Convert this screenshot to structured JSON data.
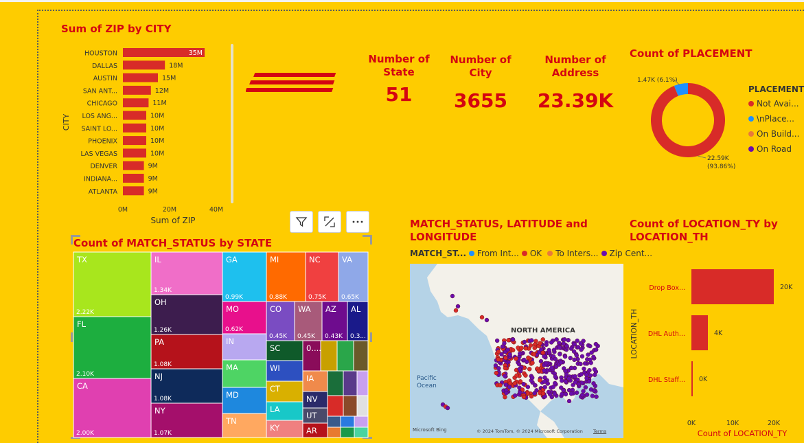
{
  "colors": {
    "background": "#FECC00",
    "dhl_red": "#D40511",
    "bar": "#D82B28",
    "donut_blue": "#1E90FF",
    "map_water": "#B5D3E7",
    "map_land": "#F3F1EA"
  },
  "charts": {
    "zip_by_city": {
      "title": "Sum of ZIP by CITY"
    },
    "kpis": [
      {
        "label": "Number of State",
        "value": "51"
      },
      {
        "label": "Number of City",
        "value": "3655"
      },
      {
        "label": "Number of Address",
        "value": "23.39K"
      }
    ],
    "placement": {
      "title": "Count of PLACEMENT",
      "legend_title": "PLACEMENT"
    },
    "match_status_state": {
      "title": "Count of MATCH_STATUS by STATE"
    },
    "map": {
      "title": "MATCH_STATUS, LATITUDE and LONGITUDE",
      "legend_title": "MATCH_ST...",
      "legend": [
        "From Int...",
        "OK",
        "To Inters...",
        "Zip Cent..."
      ],
      "label_na": "NORTH AMERICA",
      "label_pacific": "Pacific\nOcean",
      "logo": "Microsoft Bing",
      "copyright": "© 2024 TomTom, © 2024 Microsoft Corporation",
      "terms": "Terms"
    },
    "location": {
      "title": "Count of LOCATION_TY by LOCATION_TH"
    }
  },
  "visual_header": {
    "icons": [
      "filter-icon",
      "focus-mode-icon",
      "more-options-icon"
    ]
  },
  "logo_text": "DHL",
  "chart_data": [
    {
      "type": "bar",
      "orientation": "horizontal",
      "title": "Sum of ZIP by CITY",
      "xlabel": "Sum of ZIP",
      "ylabel": "CITY",
      "categories": [
        "HOUSTON",
        "DALLAS",
        "AUSTIN",
        "SAN ANT...",
        "CHICAGO",
        "LOS ANG...",
        "SAINT LO...",
        "PHOENIX",
        "LAS VEGAS",
        "DENVER",
        "INDIANA...",
        "ATLANTA"
      ],
      "values": [
        35000000,
        18000000,
        15000000,
        12000000,
        11000000,
        10000000,
        10000000,
        10000000,
        10000000,
        9000000,
        9000000,
        9000000
      ],
      "data_labels": [
        "35M",
        "18M",
        "15M",
        "12M",
        "11M",
        "10M",
        "10M",
        "10M",
        "10M",
        "9M",
        "9M",
        "9M"
      ],
      "xlim": [
        0,
        40000000
      ],
      "xticks": [
        "0M",
        "20M",
        "40M"
      ]
    },
    {
      "type": "pie",
      "donut": true,
      "title": "Count of PLACEMENT",
      "legend_title": "PLACEMENT",
      "legend": [
        "Not Avai...",
        "\\nPlace...",
        "On Build...",
        "On Road"
      ],
      "legend_colors": [
        "#D82B28",
        "#1E90FF",
        "#E8793B",
        "#6A0DAD"
      ],
      "slices": [
        {
          "label": "22.59K",
          "value": 22590,
          "percent": "(93.86%)",
          "color": "#D82B28"
        },
        {
          "label": "1.47K (6.1%)",
          "value": 1470,
          "color": "#1E90FF"
        },
        {
          "label": "",
          "value": 5,
          "color": "#E8793B"
        },
        {
          "label": "",
          "value": 5,
          "color": "#6A0DAD"
        }
      ]
    },
    {
      "type": "heatmap",
      "subtype": "treemap",
      "title": "Count of MATCH_STATUS by STATE",
      "tiles": [
        {
          "name": "TX",
          "value": "2.22K",
          "color": "#A8E61D"
        },
        {
          "name": "FL",
          "value": "2.10K",
          "color": "#1DAE3F"
        },
        {
          "name": "CA",
          "value": "2.00K",
          "color": "#E040B0"
        },
        {
          "name": "IL",
          "value": "1.34K",
          "color": "#F06EC8"
        },
        {
          "name": "OH",
          "value": "1.26K",
          "color": "#3D1D4E"
        },
        {
          "name": "PA",
          "value": "1.08K",
          "color": "#B5121B"
        },
        {
          "name": "NJ",
          "value": "1.08K",
          "color": "#0E2A5A"
        },
        {
          "name": "NY",
          "value": "1.07K",
          "color": "#A40F6B"
        },
        {
          "name": "GA",
          "value": "0.99K",
          "color": "#1EC0EE"
        },
        {
          "name": "MI",
          "value": "0.88K",
          "color": "#FF6A00"
        },
        {
          "name": "NC",
          "value": "0.75K",
          "color": "#F04040"
        },
        {
          "name": "VA",
          "value": "0.65K",
          "color": "#8FA8E8"
        },
        {
          "name": "MO",
          "value": "0.62K",
          "color": "#E8108C"
        },
        {
          "name": "CO",
          "value": "0.45K",
          "color": "#7A4CC2"
        },
        {
          "name": "WA",
          "value": "0.45K",
          "color": "#A85A7A"
        },
        {
          "name": "AZ",
          "value": "0.43K",
          "color": "#6E0C8E"
        },
        {
          "name": "AL",
          "value": "0.3...",
          "color": "#1A1A8A"
        },
        {
          "name": "IN",
          "value": "",
          "color": "#B8A8F0"
        },
        {
          "name": "SC",
          "value": "",
          "color": "#0F5A2A"
        },
        {
          "name": "MA",
          "value": "",
          "color": "#4ED464"
        },
        {
          "name": "WI",
          "value": "",
          "color": "#2D50C0"
        },
        {
          "name": "MD",
          "value": "",
          "color": "#1E88DE"
        },
        {
          "name": "CT",
          "value": "",
          "color": "#D9B000"
        },
        {
          "name": "TN",
          "value": "",
          "color": "#FFA860"
        },
        {
          "name": "LA",
          "value": "",
          "color": "#18C8C8"
        },
        {
          "name": "KY",
          "value": "",
          "color": "#F08080"
        },
        {
          "name": "IA",
          "value": "",
          "color": "#F08A4B"
        },
        {
          "name": "NV",
          "value": "",
          "color": "#2A2A6A"
        },
        {
          "name": "UT",
          "value": "",
          "color": "#4A4A6A"
        },
        {
          "name": "AR",
          "value": "",
          "color": "#B5121B"
        },
        {
          "name": "0....",
          "value": "",
          "color": "#8A0C5A"
        }
      ]
    },
    {
      "type": "scatter",
      "subtype": "map",
      "title": "MATCH_STATUS, LATITUDE and LONGITUDE",
      "legend_title": "MATCH_ST...",
      "series": [
        {
          "name": "From Int...",
          "color": "#1E90FF"
        },
        {
          "name": "OK",
          "color": "#D82B28"
        },
        {
          "name": "To Inters...",
          "color": "#E8793B"
        },
        {
          "name": "Zip Cent...",
          "color": "#6A0DAD"
        }
      ]
    },
    {
      "type": "bar",
      "orientation": "horizontal",
      "title": "Count of LOCATION_TY by LOCATION_TH",
      "xlabel": "Count of LOCATION_TY",
      "ylabel": "LOCATION_TH",
      "categories": [
        "Drop Box...",
        "DHL Auth...",
        "DHL Staff..."
      ],
      "values": [
        20000,
        4000,
        100
      ],
      "data_labels": [
        "20K",
        "4K",
        "0K"
      ],
      "xlim": [
        0,
        20000
      ],
      "xticks": [
        "0K",
        "10K",
        "20K"
      ]
    }
  ]
}
